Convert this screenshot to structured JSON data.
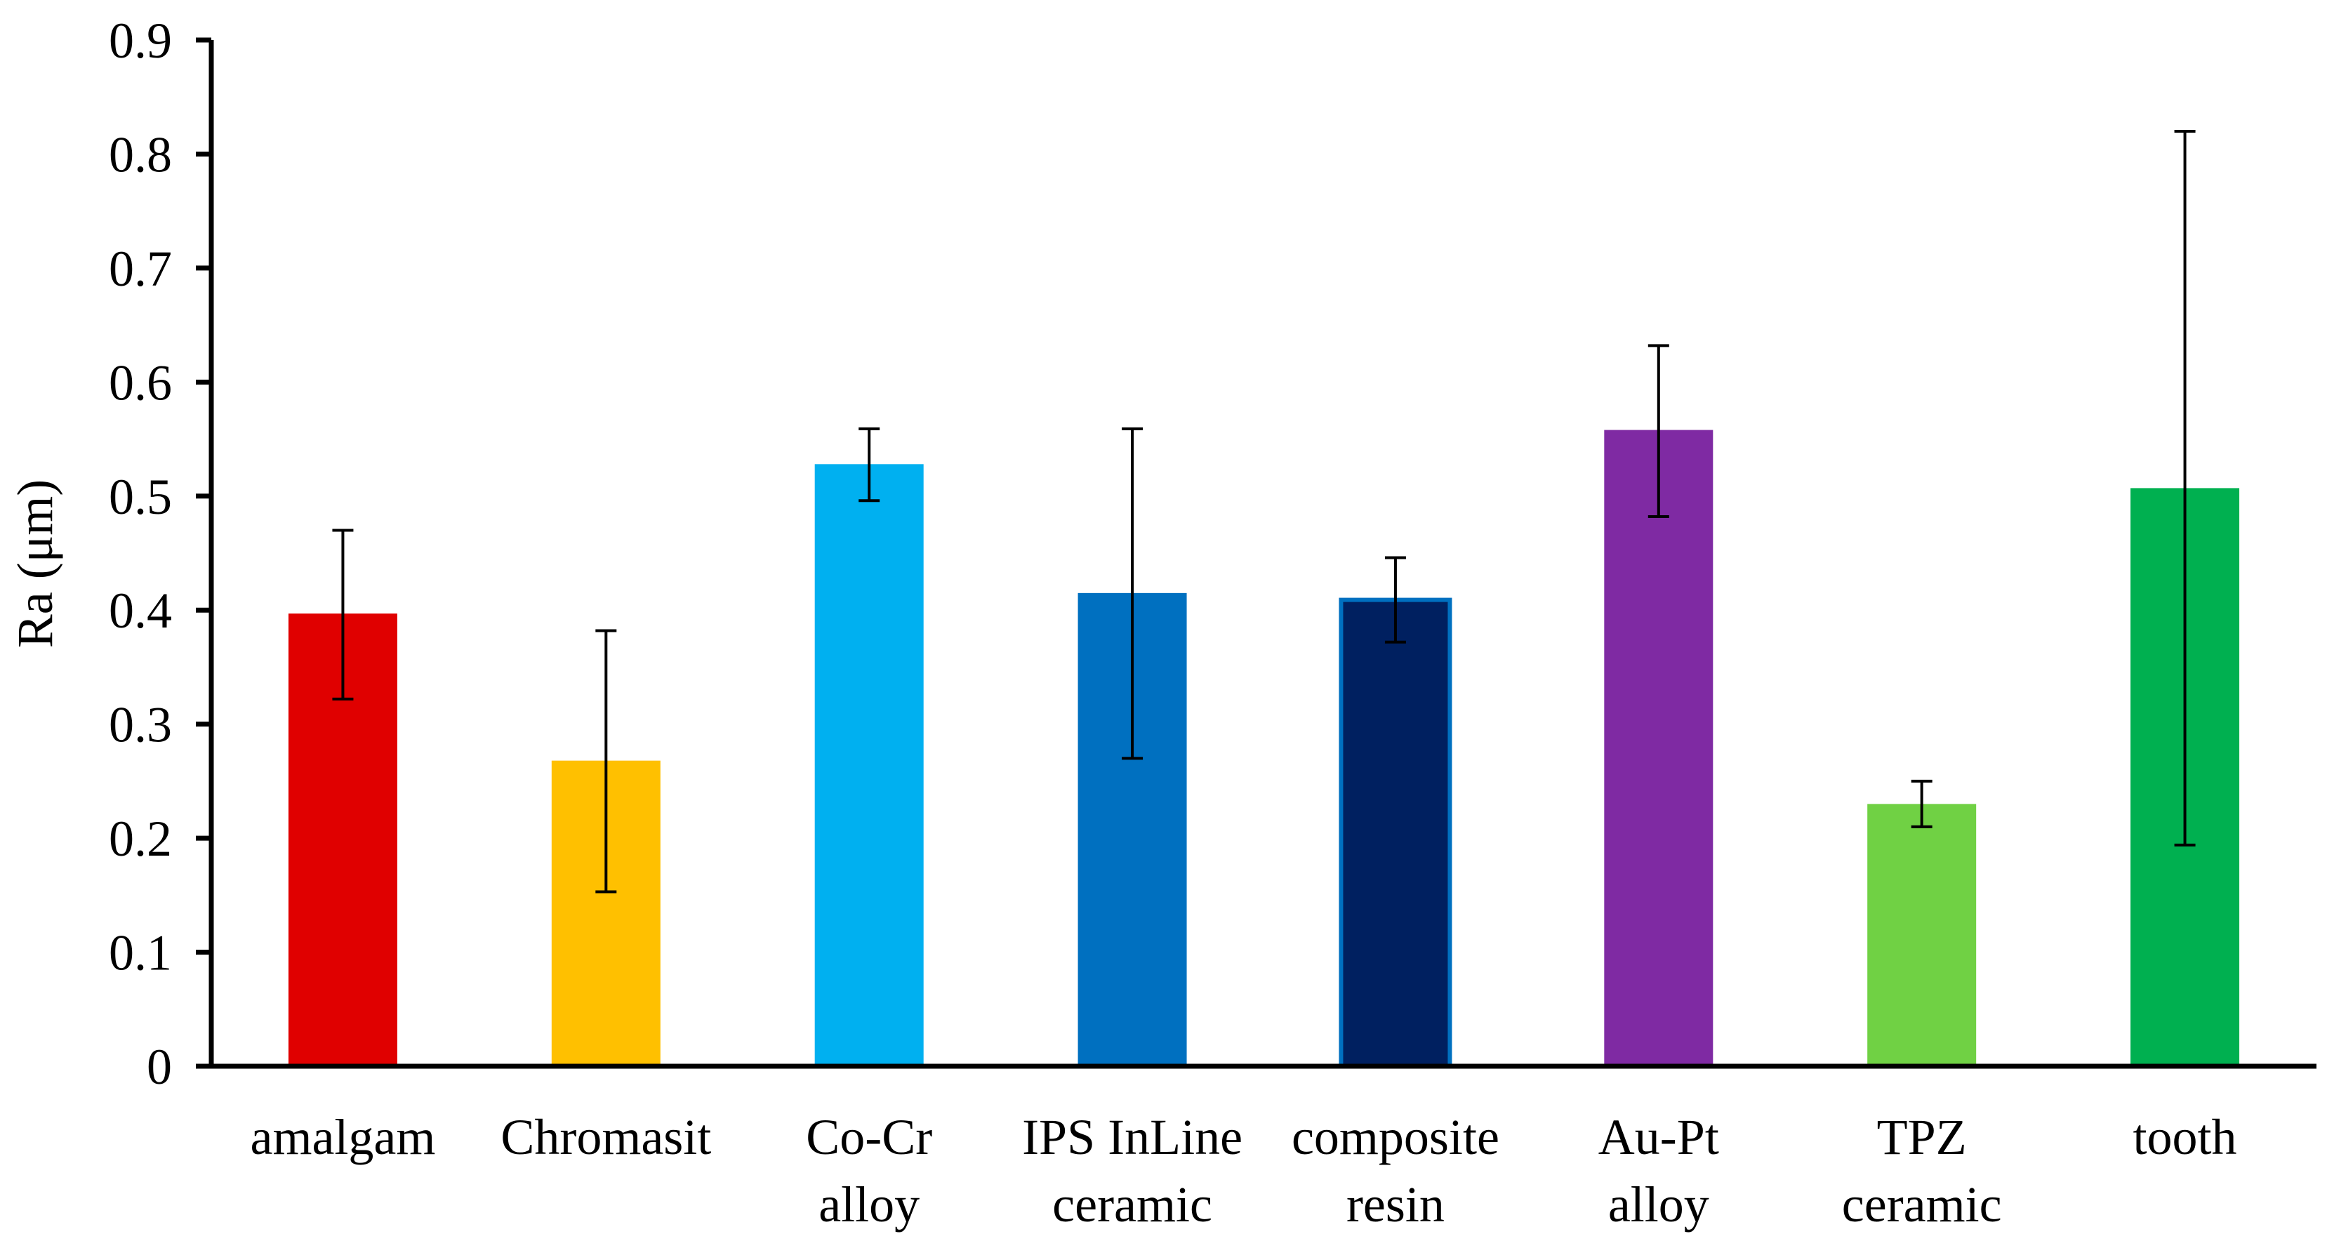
{
  "chart_data": {
    "type": "bar",
    "title": "",
    "xlabel": "",
    "ylabel": "Ra (μm)",
    "ylim": [
      0,
      0.9
    ],
    "yticks": [
      "0",
      "0.1",
      "0.2",
      "0.3",
      "0.4",
      "0.5",
      "0.6",
      "0.7",
      "0.8",
      "0.9"
    ],
    "grid": false,
    "legend": "none",
    "categories": [
      [
        "amalgam"
      ],
      [
        "Chromasit"
      ],
      [
        "Co-Cr",
        "alloy"
      ],
      [
        "IPS InLine",
        "ceramic"
      ],
      [
        "composite",
        "resin"
      ],
      [
        "Au-Pt",
        "alloy"
      ],
      [
        "TPZ",
        "ceramic"
      ],
      [
        "tooth"
      ]
    ],
    "values": [
      0.397,
      0.268,
      0.528,
      0.415,
      0.409,
      0.558,
      0.23,
      0.507
    ],
    "error_low": [
      0.322,
      0.153,
      0.496,
      0.27,
      0.372,
      0.482,
      0.21,
      0.194
    ],
    "error_high": [
      0.47,
      0.382,
      0.559,
      0.559,
      0.446,
      0.632,
      0.25,
      0.82
    ],
    "colors": [
      "#E00000",
      "#FFC000",
      "#00B0F0",
      "#0070C0",
      "#002060",
      "#7F2AA3",
      "#70D144",
      "#00B050"
    ],
    "edge_colors": [
      "",
      "",
      "",
      "",
      "#0070C0",
      "",
      "",
      ""
    ]
  }
}
